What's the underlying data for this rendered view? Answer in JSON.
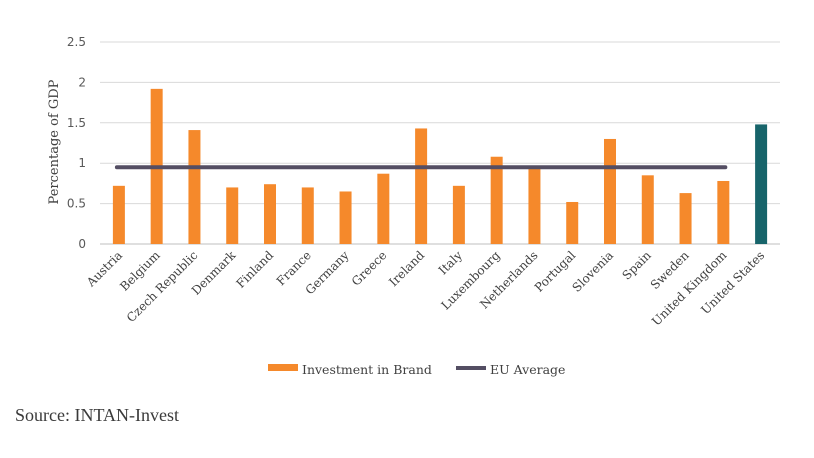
{
  "chart_data": {
    "type": "bar",
    "ylabel": "Percentage of GDP",
    "ylim": [
      0,
      2.5
    ],
    "yticks": [
      "0",
      "0.5",
      "1",
      "1.5",
      "2",
      "2.5"
    ],
    "categories": [
      "Austria",
      "Belgium",
      "Czech Republic",
      "Denmark",
      "Finland",
      "France",
      "Germany",
      "Greece",
      "Ireland",
      "Italy",
      "Luxembourg",
      "Netherlands",
      "Portugal",
      "Slovenia",
      "Spain",
      "Sweden",
      "United Kingdom",
      "United States"
    ],
    "series": [
      {
        "name": "Investment in Brand",
        "values": [
          0.72,
          1.92,
          1.41,
          0.7,
          0.74,
          0.7,
          0.65,
          0.87,
          1.43,
          0.72,
          1.08,
          0.94,
          0.52,
          1.3,
          0.85,
          0.63,
          0.78,
          1.48
        ],
        "color": "#F5892B",
        "highlight_color": "#17646A",
        "highlight_category": "United States"
      },
      {
        "name": "EU Average",
        "type": "line",
        "value": 0.95,
        "color": "#544E63"
      }
    ],
    "grid": true,
    "legend_position": "bottom"
  },
  "source": "Source: INTAN-Invest"
}
